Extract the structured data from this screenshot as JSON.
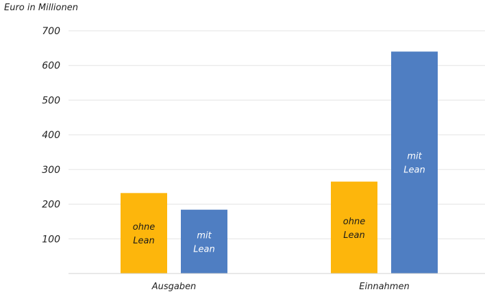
{
  "chart_data": {
    "type": "bar",
    "unit_label": "Euro in Millionen",
    "categories": [
      "Ausgaben",
      "Einnahmen"
    ],
    "series": [
      {
        "name": "ohne Lean",
        "color": "#FDB60C",
        "label_color": "#1a1a1a",
        "values": [
          232,
          265
        ],
        "bar_labels": [
          [
            "ohne",
            "Lean"
          ],
          [
            "ohne",
            "Lean"
          ]
        ]
      },
      {
        "name": "mit Lean",
        "color": "#4F7EC2",
        "label_color": "#ffffff",
        "values": [
          184,
          640
        ],
        "bar_labels": [
          [
            "mit",
            "Lean"
          ],
          [
            "mit",
            "Lean"
          ]
        ]
      }
    ],
    "yticks": [
      100,
      200,
      300,
      400,
      500,
      600,
      700
    ],
    "ylim": [
      0,
      700
    ],
    "grid": true,
    "legend": "none"
  }
}
